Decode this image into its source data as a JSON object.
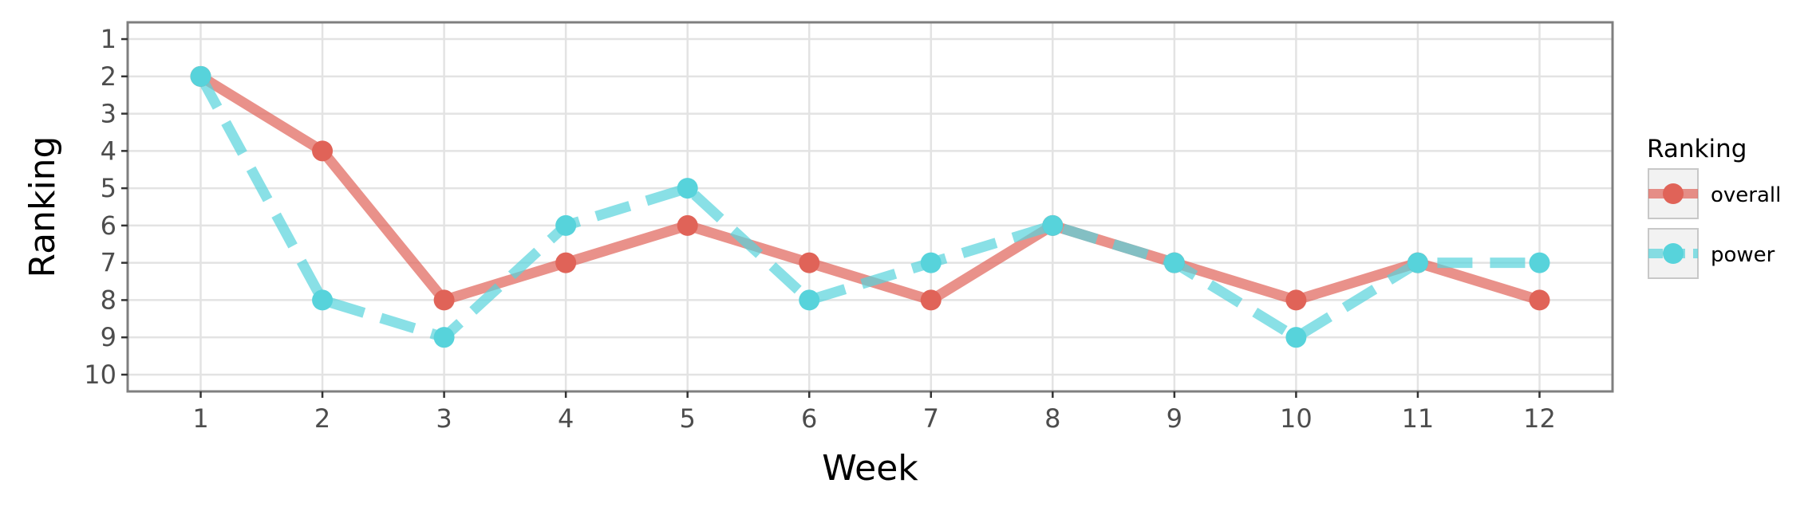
{
  "chart_data": {
    "type": "line",
    "xlabel": "Week",
    "ylabel": "Ranking",
    "x": [
      1,
      2,
      3,
      4,
      5,
      6,
      7,
      8,
      9,
      10,
      11,
      12
    ],
    "xlim": [
      0.4,
      12.6
    ],
    "ylim": [
      10.45,
      0.55
    ],
    "y_reversed": true,
    "y_ticks": [
      1,
      2,
      3,
      4,
      5,
      6,
      7,
      8,
      9,
      10
    ],
    "grid": true,
    "legend": {
      "title": "Ranking",
      "placement": "right"
    },
    "series": [
      {
        "name": "overall",
        "values": [
          2,
          4,
          8,
          7,
          6,
          7,
          8,
          6,
          7,
          8,
          7,
          8
        ],
        "color": "#e06358",
        "line_style": "solid"
      },
      {
        "name": "power",
        "values": [
          2,
          8,
          9,
          6,
          5,
          8,
          7,
          6,
          7,
          9,
          7,
          7
        ],
        "color": "#57d3db",
        "line_style": "dashed"
      }
    ]
  }
}
